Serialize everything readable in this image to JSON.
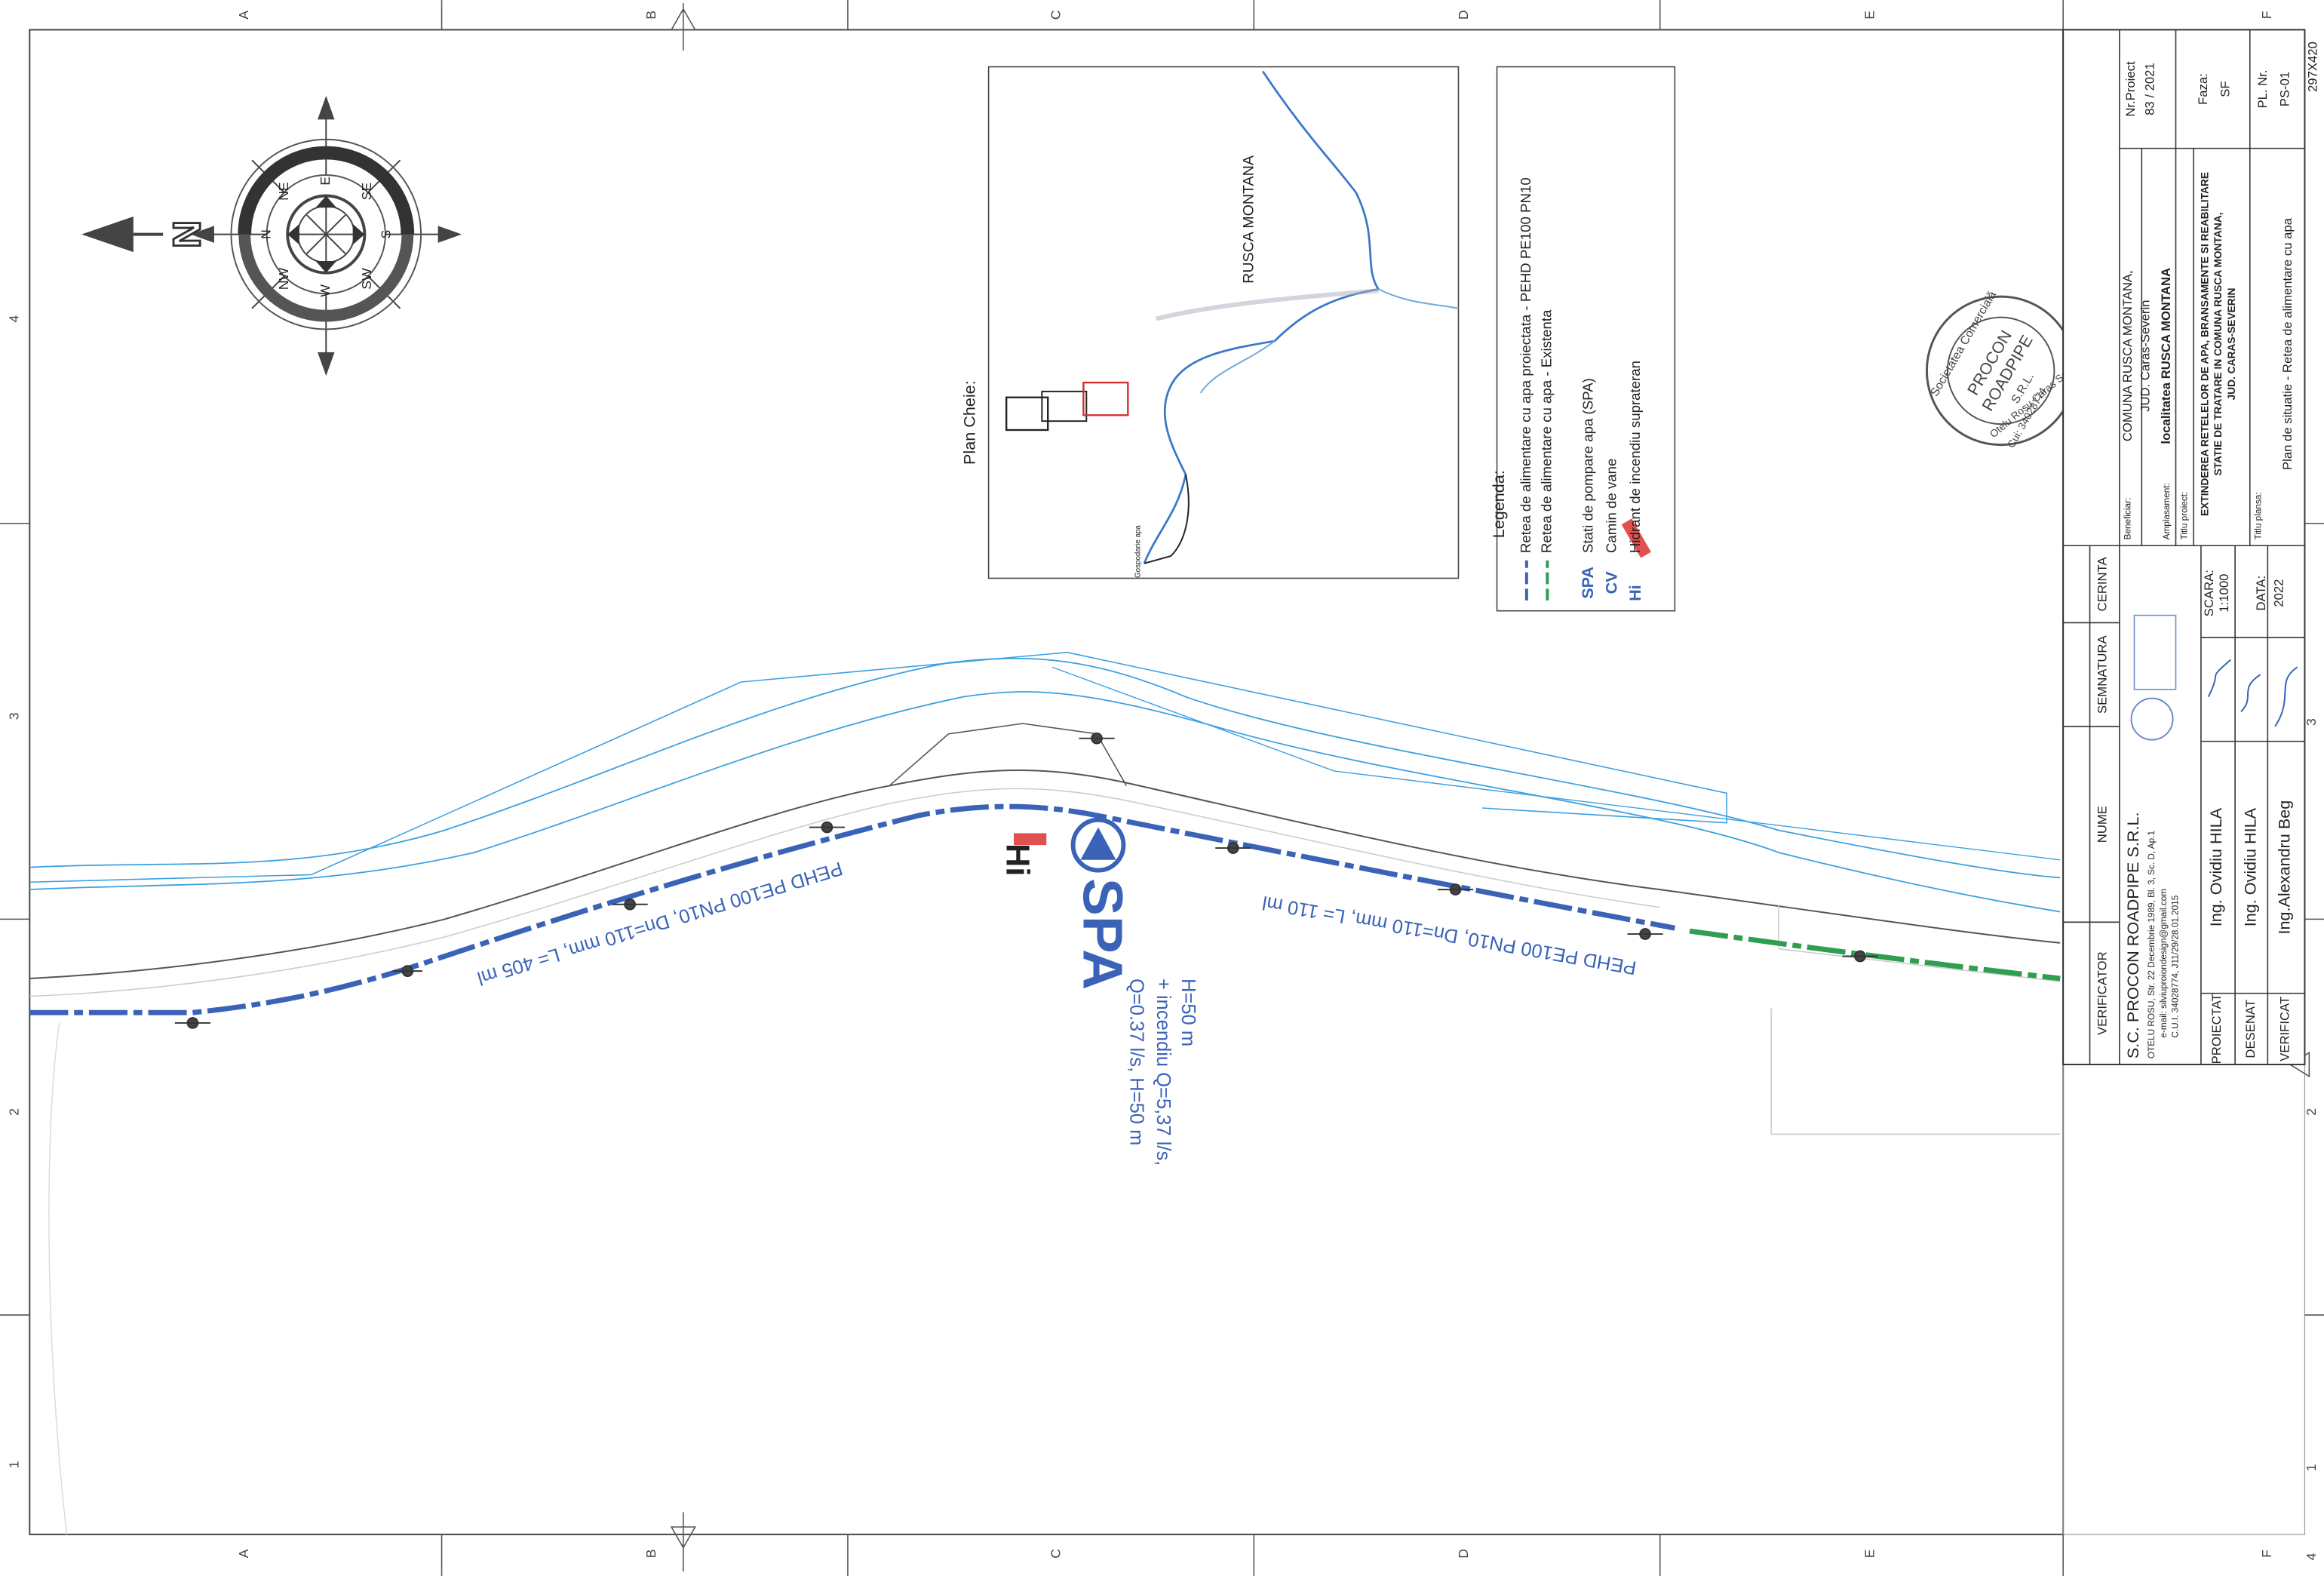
{
  "frame": {
    "columns": [
      "A",
      "B",
      "C",
      "D",
      "E",
      "F"
    ],
    "rows": [
      "4",
      "3",
      "2",
      "1"
    ]
  },
  "compass": {
    "north": "N",
    "labels": [
      "N",
      "NE",
      "E",
      "SE",
      "S",
      "SW",
      "W",
      "NW"
    ]
  },
  "key_plan": {
    "title": "Plan Cheie:",
    "locality": "RUSCA MONTANA",
    "site": "Gospodarie apa"
  },
  "legend": {
    "title": "Legenda:",
    "items": [
      {
        "label": "Retea de alimentare cu apa proiectata - PEHD PE100 PN10"
      },
      {
        "label": "Retea de alimentare cu apa - Existenta"
      },
      {
        "symbol": "SPA",
        "label": "Stati de pompare apa  (SPA)"
      },
      {
        "symbol": "CV",
        "label": "Camin de vane"
      },
      {
        "symbol": "Hi",
        "label": "Hidrant de incendiu suprateran"
      }
    ]
  },
  "annotations": {
    "pipe_1": "PEHD PE100 PN10, Dn=110 mm, L= 405 ml",
    "pipe_2": "PEHD PE100 PN10, Dn=110 mm, L= 110 ml",
    "pump": "SPA",
    "hydrant": "Hi",
    "pump_specs": [
      "Q=0.37 l/s, H=50 m",
      "+ incendiu Q=5,37 l/s,",
      "H=50 m"
    ]
  },
  "stamp": {
    "lines": [
      "Societatea Comercială",
      "PROCON",
      "ROADPIPE",
      "S.R.L.",
      "Cui: 34028774",
      "Otelu Rosu Caras Severin"
    ]
  },
  "title_block": {
    "headers": [
      "VERIFICATOR",
      "NUME",
      "SEMNATURA",
      "CERINTA"
    ],
    "company": {
      "name": "S.C. PROCON ROADPIPE S.R.L.",
      "address": "OTELU ROSU, Str. 22 Decembrie 1989, Bl. 3, Sc. D, Ap.1",
      "email": "e-mail: silviuproiondesign@gmail.com",
      "registration": "C.U.I. 34028774, J11/29/28.01.2015"
    },
    "roles": [
      {
        "role": "PROIECTAT",
        "name": "Ing. Ovidiu HILA"
      },
      {
        "role": "DESENAT",
        "name": "Ing. Ovidiu HILA"
      },
      {
        "role": "VERIFICAT",
        "name": "Ing.Alexandru Beg"
      }
    ],
    "scale": {
      "label": "SCARA:",
      "value": "1:1000"
    },
    "date": {
      "label": "DATA:",
      "value": "2022"
    },
    "beneficiary": {
      "label": "Beneficiar:",
      "lines": [
        "COMUNA RUSCA MONTANA,",
        "JUD. Caras-Severin"
      ]
    },
    "location": {
      "label": "Amplasament:",
      "value": "localitatea RUSCA MONTANA"
    },
    "project_title": {
      "label": "Titlu proiect:",
      "lines": [
        "EXTINDEREA RETELELOR DE APA, BRANSAMENTE SI REABILITARE",
        "STATIE DE TRATARE IN COMUNA RUSCA MONTANA,",
        "JUD. CARAS-SEVERIN"
      ]
    },
    "sheet_title": {
      "label": "Titlu plansa:",
      "value": "Plan de situatie - Retea de alimentare cu apa"
    },
    "project_no": {
      "label": "Nr.Proiect",
      "value": "83 / 2021"
    },
    "phase": {
      "label": "Faza:",
      "value": "SF"
    },
    "sheet_no": {
      "label": "PL. Nr.",
      "value": "PS-01"
    },
    "format": "297X420"
  }
}
